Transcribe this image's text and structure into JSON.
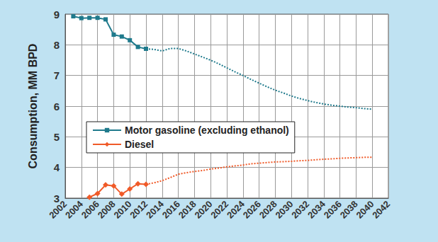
{
  "chart_data": {
    "type": "line",
    "y_label": "Consumption, MM BPD",
    "xlim": [
      2002,
      2042
    ],
    "xticks": [
      2002,
      2004,
      2006,
      2008,
      2010,
      2012,
      2014,
      2016,
      2018,
      2020,
      2022,
      2024,
      2026,
      2028,
      2030,
      2032,
      2034,
      2036,
      2038,
      2040,
      2042
    ],
    "ylim": [
      3,
      9
    ],
    "yticks": [
      3,
      4,
      5,
      6,
      7,
      8,
      9
    ],
    "grid": true,
    "legend": "lower left",
    "series": [
      {
        "name": "Motor gasoline (excluding ethanol)",
        "color": "#1f7a8c",
        "marker": "square",
        "line_style": "solid",
        "x": [
          2003,
          2004,
          2005,
          2006,
          2007,
          2008,
          2009,
          2010,
          2011,
          2012
        ],
        "values": [
          8.93,
          8.87,
          8.88,
          8.88,
          8.83,
          8.33,
          8.27,
          8.15,
          7.93,
          7.87
        ]
      },
      {
        "name": "Motor gasoline (excluding ethanol)",
        "color": "#1f7a8c",
        "marker": "none",
        "line_style": "dotted",
        "x": [
          2012,
          2013,
          2014,
          2015,
          2016,
          2017,
          2018,
          2019,
          2020,
          2021,
          2022,
          2023,
          2024,
          2025,
          2026,
          2027,
          2028,
          2029,
          2030,
          2031,
          2032,
          2033,
          2034,
          2035,
          2036,
          2037,
          2038,
          2039,
          2040
        ],
        "values": [
          7.87,
          7.85,
          7.8,
          7.88,
          7.88,
          7.8,
          7.7,
          7.6,
          7.5,
          7.38,
          7.25,
          7.12,
          7.0,
          6.87,
          6.75,
          6.63,
          6.52,
          6.43,
          6.33,
          6.25,
          6.18,
          6.12,
          6.07,
          6.03,
          6.0,
          5.97,
          5.95,
          5.92,
          5.9
        ]
      },
      {
        "name": "Diesel",
        "color": "#f05a28",
        "marker": "diamond",
        "line_style": "solid",
        "x": [
          2005,
          2006,
          2007,
          2008,
          2009,
          2010,
          2011,
          2012
        ],
        "values": [
          3.03,
          3.15,
          3.43,
          3.4,
          3.13,
          3.3,
          3.47,
          3.45
        ]
      },
      {
        "name": "Diesel",
        "color": "#f05a28",
        "marker": "none",
        "line_style": "dotted",
        "x": [
          2012,
          2013,
          2014,
          2015,
          2016,
          2017,
          2018,
          2019,
          2020,
          2021,
          2022,
          2023,
          2024,
          2025,
          2026,
          2027,
          2028,
          2029,
          2030,
          2031,
          2032,
          2033,
          2034,
          2035,
          2036,
          2037,
          2038,
          2039,
          2040
        ],
        "values": [
          3.45,
          3.5,
          3.57,
          3.67,
          3.78,
          3.83,
          3.87,
          3.9,
          3.95,
          3.98,
          4.02,
          4.05,
          4.08,
          4.12,
          4.14,
          4.16,
          4.18,
          4.19,
          4.2,
          4.22,
          4.23,
          4.25,
          4.27,
          4.28,
          4.3,
          4.31,
          4.32,
          4.33,
          4.33
        ]
      }
    ]
  }
}
